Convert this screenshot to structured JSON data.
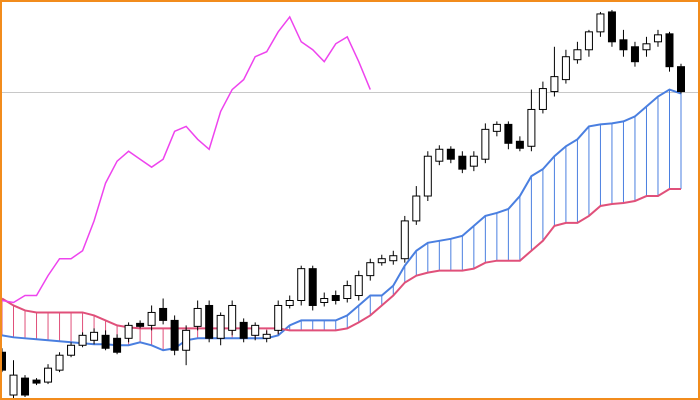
{
  "chart_data": {
    "type": "candlestick",
    "ylim": [
      0,
      400
    ],
    "open": [
      48,
      5,
      22,
      20,
      18,
      30,
      45,
      55,
      60,
      65,
      62,
      62,
      77,
      75,
      92,
      80,
      50,
      74,
      95,
      62,
      70,
      78,
      65,
      62,
      70,
      95,
      100,
      132,
      98,
      105,
      102,
      105,
      125,
      138,
      140,
      142,
      180,
      205,
      240,
      252,
      245,
      235,
      242,
      270,
      277,
      260,
      255,
      292,
      310,
      322,
      342,
      352,
      370,
      390,
      362,
      355,
      352,
      360,
      368,
      335
    ],
    "high": [
      52,
      40,
      25,
      22,
      36,
      48,
      58,
      68,
      72,
      70,
      66,
      78,
      80,
      95,
      102,
      85,
      75,
      100,
      100,
      88,
      100,
      82,
      78,
      70,
      100,
      105,
      135,
      135,
      108,
      110,
      120,
      130,
      142,
      146,
      150,
      185,
      215,
      250,
      256,
      255,
      250,
      250,
      278,
      280,
      280,
      265,
      312,
      320,
      355,
      352,
      360,
      372,
      390,
      392,
      372,
      360,
      365,
      372,
      370,
      338
    ],
    "low": [
      28,
      2,
      3,
      15,
      16,
      28,
      43,
      53,
      56,
      50,
      46,
      58,
      72,
      70,
      76,
      45,
      35,
      70,
      58,
      55,
      65,
      58,
      60,
      58,
      66,
      92,
      95,
      90,
      94,
      96,
      98,
      100,
      120,
      135,
      136,
      138,
      176,
      200,
      236,
      238,
      228,
      230,
      238,
      265,
      252,
      250,
      250,
      288,
      305,
      318,
      338,
      345,
      365,
      355,
      345,
      335,
      345,
      355,
      330,
      308
    ],
    "close": [
      30,
      25,
      5,
      17,
      32,
      45,
      55,
      65,
      68,
      52,
      48,
      75,
      74,
      88,
      80,
      50,
      70,
      92,
      62,
      85,
      95,
      62,
      75,
      66,
      95,
      100,
      132,
      95,
      102,
      100,
      115,
      125,
      138,
      142,
      145,
      180,
      205,
      245,
      252,
      242,
      232,
      245,
      272,
      277,
      258,
      253,
      292,
      313,
      325,
      345,
      352,
      370,
      388,
      360,
      352,
      340,
      358,
      367,
      335,
      310
    ],
    "up_color": "#ffffff",
    "down_color": "#000000",
    "last_price_line": 309,
    "series": [
      {
        "color": "#4a7fe0",
        "values": [
          65,
          63,
          62,
          61,
          60,
          59,
          58,
          57,
          56,
          56,
          55,
          55,
          58,
          55,
          50,
          52,
          60,
          62,
          62,
          62,
          62,
          62,
          62,
          62,
          65,
          75,
          80,
          80,
          80,
          80,
          85,
          95,
          105,
          105,
          115,
          135,
          150,
          158,
          160,
          162,
          165,
          175,
          185,
          188,
          192,
          205,
          225,
          232,
          245,
          255,
          262,
          275,
          277,
          278,
          280,
          285,
          295,
          305,
          312,
          308
        ]
      },
      {
        "color": "#e0507a",
        "values": [
          102,
          95,
          90,
          88,
          88,
          88,
          88,
          88,
          85,
          80,
          75,
          73,
          72,
          72,
          72,
          72,
          72,
          72,
          72,
          72,
          72,
          72,
          72,
          72,
          72,
          70,
          70,
          70,
          70,
          70,
          72,
          78,
          85,
          95,
          105,
          118,
          125,
          128,
          130,
          130,
          130,
          132,
          138,
          140,
          140,
          140,
          150,
          160,
          175,
          178,
          178,
          185,
          195,
          197,
          198,
          200,
          205,
          205,
          212,
          212
        ]
      },
      {
        "color": "#ee44ee",
        "values": [
          100,
          98,
          105,
          105,
          125,
          142,
          142,
          150,
          180,
          218,
          240,
          250,
          242,
          234,
          242,
          270,
          275,
          262,
          252,
          290,
          312,
          322,
          345,
          350,
          370,
          385,
          360,
          352,
          340,
          358,
          365,
          340,
          312,
          null,
          null,
          null,
          null,
          null,
          null,
          null,
          null,
          null,
          null,
          null,
          null,
          null,
          null,
          null,
          null,
          null,
          null,
          null,
          null,
          null,
          null,
          null,
          null,
          null,
          null,
          null
        ]
      }
    ]
  }
}
